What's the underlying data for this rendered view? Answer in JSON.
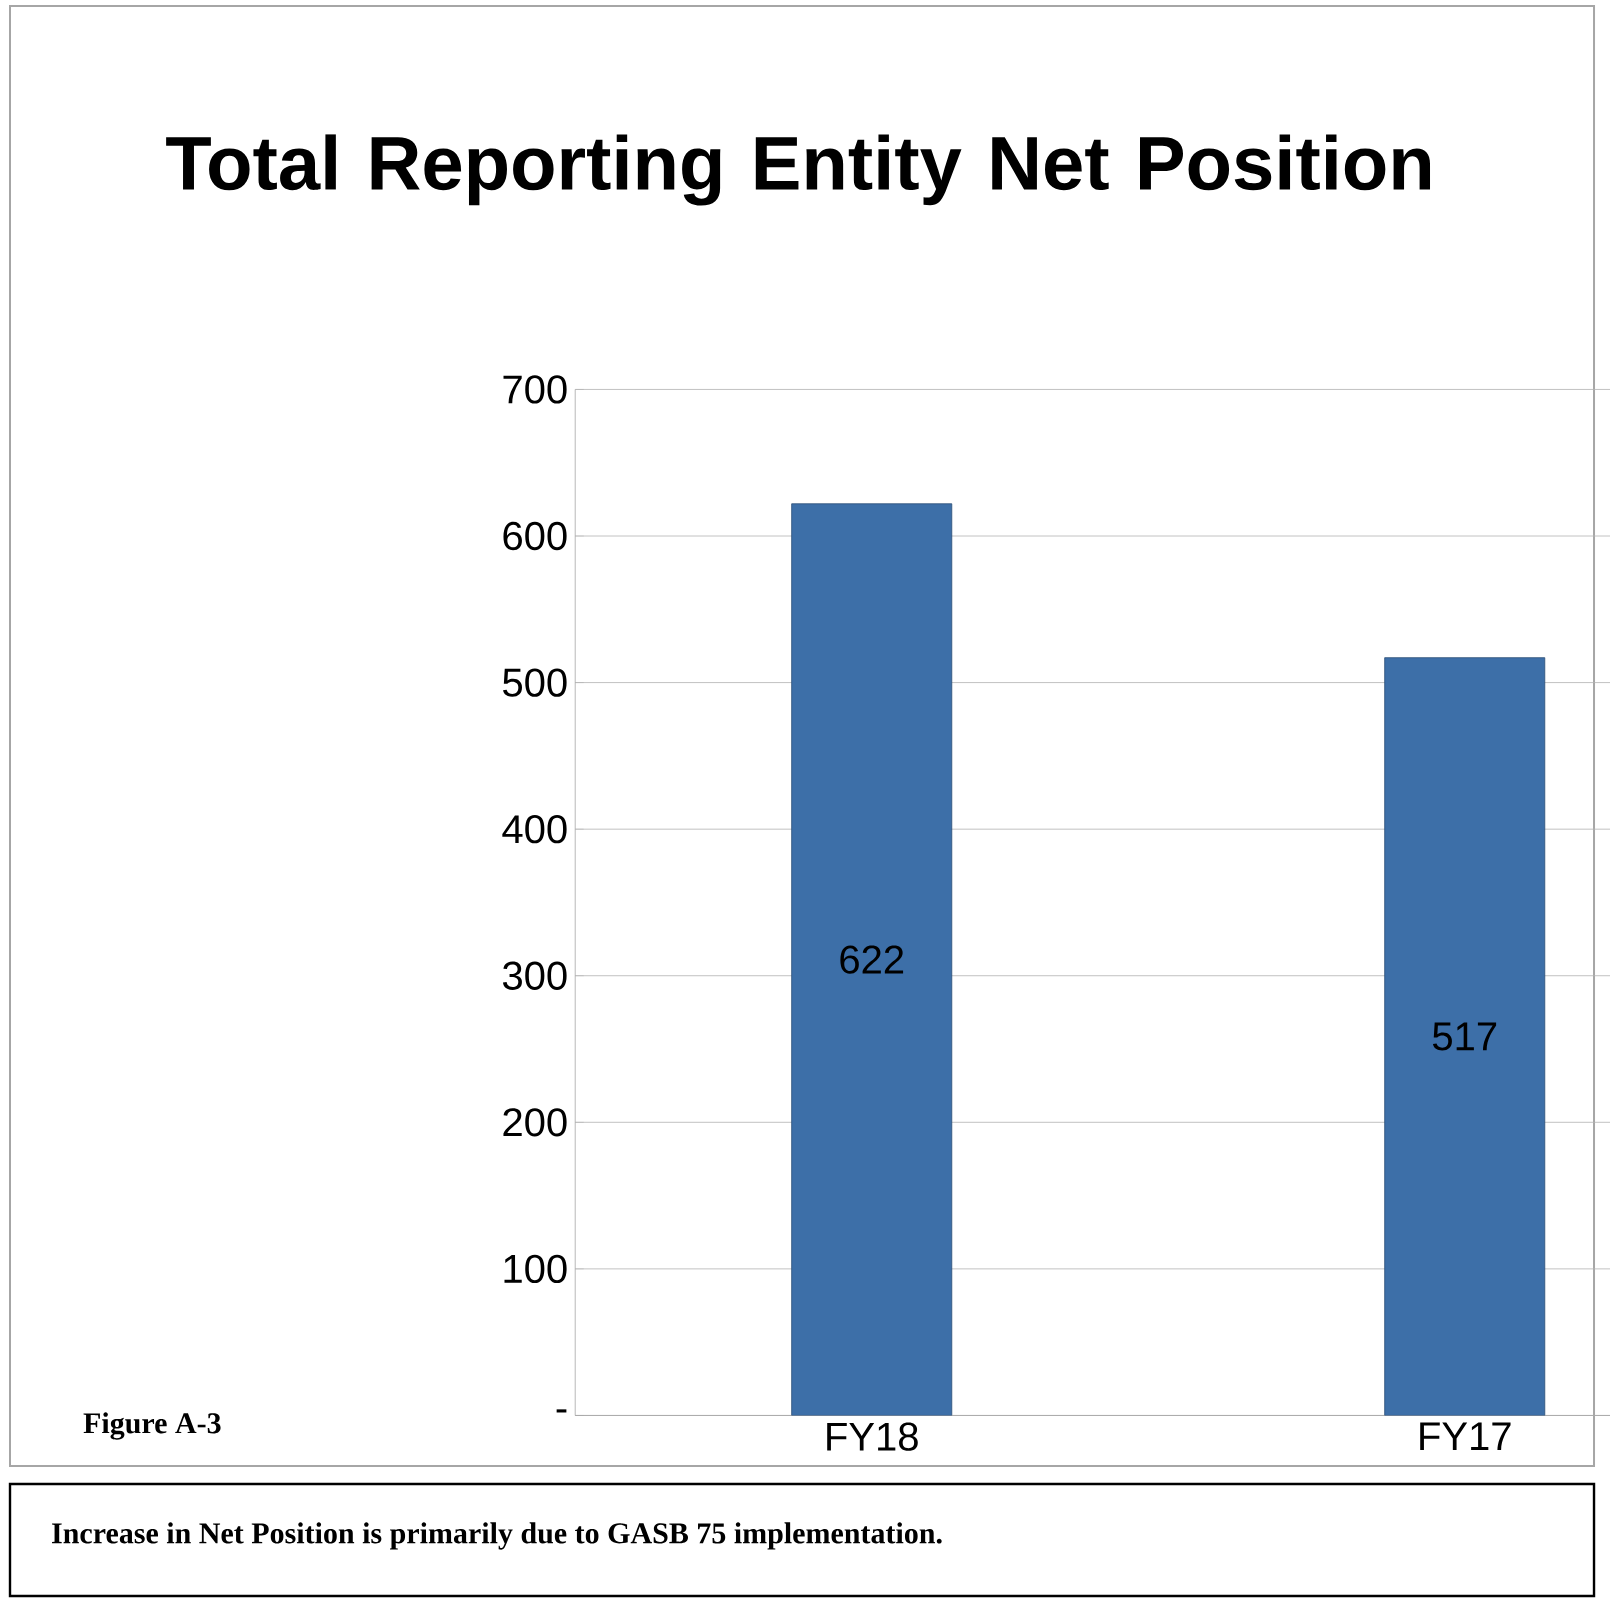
{
  "chart_data": {
    "type": "bar",
    "title": "Total Reporting Entity Net Position",
    "categories": [
      "FY18",
      "FY17"
    ],
    "values": [
      622,
      517
    ],
    "color": "#3d6fa8",
    "ylim": [
      0,
      700
    ],
    "yticks": [
      {
        "value": 0,
        "label": "-"
      },
      100,
      200,
      300,
      400,
      500,
      600,
      700
    ],
    "grid": "y",
    "data_labels": true,
    "annotations": [
      "Figure A-3",
      "Increase in Net Position is primarily due to GASB 75 implementation."
    ]
  }
}
